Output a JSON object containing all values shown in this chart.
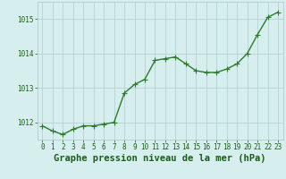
{
  "x": [
    0,
    1,
    2,
    3,
    4,
    5,
    6,
    7,
    8,
    9,
    10,
    11,
    12,
    13,
    14,
    15,
    16,
    17,
    18,
    19,
    20,
    21,
    22,
    23
  ],
  "y": [
    1011.9,
    1011.75,
    1011.65,
    1011.8,
    1011.9,
    1011.9,
    1011.95,
    1012.0,
    1012.85,
    1013.1,
    1013.25,
    1013.8,
    1013.85,
    1013.9,
    1013.7,
    1013.5,
    1013.45,
    1013.45,
    1013.55,
    1013.7,
    1014.0,
    1014.55,
    1015.05,
    1015.2
  ],
  "line_color": "#2d7a2d",
  "marker_color": "#2d7a2d",
  "background_color": "#d6eeee",
  "grid_color": "#b0cccc",
  "title": "Graphe pression niveau de la mer (hPa)",
  "title_color": "#1a5c1a",
  "title_fontsize": 7.5,
  "ylim": [
    1011.5,
    1015.5
  ],
  "yticks": [
    1012,
    1013,
    1014,
    1015
  ],
  "xtick_labels": [
    "0",
    "1",
    "2",
    "3",
    "4",
    "5",
    "6",
    "7",
    "8",
    "9",
    "10",
    "11",
    "12",
    "13",
    "14",
    "15",
    "16",
    "17",
    "18",
    "19",
    "20",
    "21",
    "22",
    "23"
  ],
  "tick_fontsize": 5.5,
  "line_width": 1.0,
  "marker_size": 2.5
}
